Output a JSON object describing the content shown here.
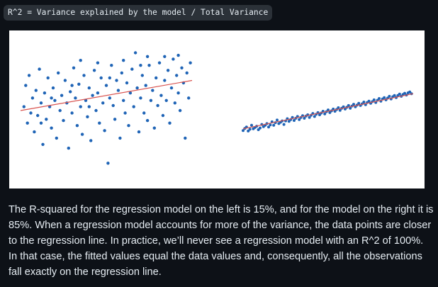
{
  "header": {
    "formula": "R^2 = Variance explained by the model / Total Variance"
  },
  "figure": {
    "point_color": "#1f64b6",
    "line_color": "#d9534f"
  },
  "chart_data": [
    {
      "type": "scatter",
      "title": "",
      "xlabel": "",
      "ylabel": "",
      "r_squared": 0.15,
      "grid": false,
      "legend": "none",
      "regression_line": {
        "x": [
          0,
          1
        ],
        "y": [
          0.52,
          0.76
        ]
      },
      "points": [
        {
          "x": 0.02,
          "y": 0.55
        },
        {
          "x": 0.03,
          "y": 0.72
        },
        {
          "x": 0.04,
          "y": 0.42
        },
        {
          "x": 0.05,
          "y": 0.8
        },
        {
          "x": 0.06,
          "y": 0.5
        },
        {
          "x": 0.07,
          "y": 0.62
        },
        {
          "x": 0.08,
          "y": 0.35
        },
        {
          "x": 0.09,
          "y": 0.68
        },
        {
          "x": 0.1,
          "y": 0.48
        },
        {
          "x": 0.11,
          "y": 0.85
        },
        {
          "x": 0.12,
          "y": 0.58
        },
        {
          "x": 0.13,
          "y": 0.25
        },
        {
          "x": 0.14,
          "y": 0.66
        },
        {
          "x": 0.15,
          "y": 0.45
        },
        {
          "x": 0.16,
          "y": 0.78
        },
        {
          "x": 0.17,
          "y": 0.55
        },
        {
          "x": 0.18,
          "y": 0.38
        },
        {
          "x": 0.19,
          "y": 0.7
        },
        {
          "x": 0.2,
          "y": 0.6
        },
        {
          "x": 0.21,
          "y": 0.3
        },
        {
          "x": 0.22,
          "y": 0.82
        },
        {
          "x": 0.23,
          "y": 0.52
        },
        {
          "x": 0.24,
          "y": 0.64
        },
        {
          "x": 0.25,
          "y": 0.44
        },
        {
          "x": 0.26,
          "y": 0.76
        },
        {
          "x": 0.27,
          "y": 0.58
        },
        {
          "x": 0.28,
          "y": 0.22
        },
        {
          "x": 0.29,
          "y": 0.67
        },
        {
          "x": 0.3,
          "y": 0.5
        },
        {
          "x": 0.31,
          "y": 0.86
        },
        {
          "x": 0.32,
          "y": 0.62
        },
        {
          "x": 0.33,
          "y": 0.4
        },
        {
          "x": 0.34,
          "y": 0.73
        },
        {
          "x": 0.35,
          "y": 0.55
        },
        {
          "x": 0.36,
          "y": 0.33
        },
        {
          "x": 0.37,
          "y": 0.8
        },
        {
          "x": 0.38,
          "y": 0.6
        },
        {
          "x": 0.39,
          "y": 0.47
        },
        {
          "x": 0.4,
          "y": 0.7
        },
        {
          "x": 0.41,
          "y": 0.28
        },
        {
          "x": 0.42,
          "y": 0.64
        },
        {
          "x": 0.43,
          "y": 0.84
        },
        {
          "x": 0.44,
          "y": 0.52
        },
        {
          "x": 0.45,
          "y": 0.66
        },
        {
          "x": 0.46,
          "y": 0.42
        },
        {
          "x": 0.47,
          "y": 0.78
        },
        {
          "x": 0.48,
          "y": 0.58
        },
        {
          "x": 0.49,
          "y": 0.36
        },
        {
          "x": 0.5,
          "y": 0.72
        },
        {
          "x": 0.51,
          "y": 0.1
        },
        {
          "x": 0.52,
          "y": 0.62
        },
        {
          "x": 0.53,
          "y": 0.88
        },
        {
          "x": 0.54,
          "y": 0.56
        },
        {
          "x": 0.55,
          "y": 0.45
        },
        {
          "x": 0.56,
          "y": 0.76
        },
        {
          "x": 0.57,
          "y": 0.68
        },
        {
          "x": 0.58,
          "y": 0.3
        },
        {
          "x": 0.59,
          "y": 0.82
        },
        {
          "x": 0.6,
          "y": 0.6
        },
        {
          "x": 0.61,
          "y": 0.5
        },
        {
          "x": 0.62,
          "y": 0.74
        },
        {
          "x": 0.63,
          "y": 0.4
        },
        {
          "x": 0.64,
          "y": 0.66
        },
        {
          "x": 0.65,
          "y": 0.85
        },
        {
          "x": 0.66,
          "y": 0.55
        },
        {
          "x": 0.67,
          "y": 0.98
        },
        {
          "x": 0.68,
          "y": 0.7
        },
        {
          "x": 0.69,
          "y": 0.35
        },
        {
          "x": 0.7,
          "y": 0.62
        },
        {
          "x": 0.71,
          "y": 0.8
        },
        {
          "x": 0.72,
          "y": 0.5
        },
        {
          "x": 0.73,
          "y": 0.72
        },
        {
          "x": 0.74,
          "y": 0.44
        },
        {
          "x": 0.75,
          "y": 0.88
        },
        {
          "x": 0.76,
          "y": 0.6
        },
        {
          "x": 0.77,
          "y": 0.68
        },
        {
          "x": 0.78,
          "y": 0.38
        },
        {
          "x": 0.79,
          "y": 0.78
        },
        {
          "x": 0.8,
          "y": 0.56
        },
        {
          "x": 0.81,
          "y": 0.9
        },
        {
          "x": 0.82,
          "y": 0.64
        },
        {
          "x": 0.83,
          "y": 0.48
        },
        {
          "x": 0.84,
          "y": 0.76
        },
        {
          "x": 0.85,
          "y": 0.6
        },
        {
          "x": 0.86,
          "y": 0.84
        },
        {
          "x": 0.87,
          "y": 0.42
        },
        {
          "x": 0.88,
          "y": 0.7
        },
        {
          "x": 0.89,
          "y": 0.93
        },
        {
          "x": 0.9,
          "y": 0.58
        },
        {
          "x": 0.91,
          "y": 0.8
        },
        {
          "x": 0.92,
          "y": 0.66
        },
        {
          "x": 0.93,
          "y": 0.52
        },
        {
          "x": 0.94,
          "y": 0.86
        },
        {
          "x": 0.95,
          "y": 0.74
        },
        {
          "x": 0.96,
          "y": 0.3
        },
        {
          "x": 0.97,
          "y": 0.82
        },
        {
          "x": 0.98,
          "y": 0.62
        },
        {
          "x": 0.99,
          "y": 0.9
        },
        {
          "x": 0.52,
          "y": 0.78
        },
        {
          "x": 0.6,
          "y": 0.92
        },
        {
          "x": 0.45,
          "y": 0.9
        },
        {
          "x": 0.3,
          "y": 0.72
        },
        {
          "x": 0.74,
          "y": 0.95
        },
        {
          "x": 0.18,
          "y": 0.62
        },
        {
          "x": 0.84,
          "y": 0.95
        },
        {
          "x": 0.35,
          "y": 0.92
        },
        {
          "x": 0.7,
          "y": 0.88
        },
        {
          "x": 0.12,
          "y": 0.42
        },
        {
          "x": 0.92,
          "y": 0.96
        },
        {
          "x": 0.4,
          "y": 0.55
        }
      ]
    },
    {
      "type": "scatter",
      "title": "",
      "xlabel": "",
      "ylabel": "",
      "r_squared": 0.85,
      "grid": false,
      "legend": "none",
      "regression_line": {
        "x": [
          0,
          1
        ],
        "y": [
          0.1,
          0.9
        ]
      },
      "points": [
        {
          "x": 0.0,
          "y": 0.06
        },
        {
          "x": 0.02,
          "y": 0.14
        },
        {
          "x": 0.03,
          "y": 0.05
        },
        {
          "x": 0.05,
          "y": 0.18
        },
        {
          "x": 0.06,
          "y": 0.1
        },
        {
          "x": 0.08,
          "y": 0.16
        },
        {
          "x": 0.09,
          "y": 0.08
        },
        {
          "x": 0.11,
          "y": 0.2
        },
        {
          "x": 0.12,
          "y": 0.15
        },
        {
          "x": 0.14,
          "y": 0.22
        },
        {
          "x": 0.15,
          "y": 0.14
        },
        {
          "x": 0.17,
          "y": 0.26
        },
        {
          "x": 0.18,
          "y": 0.18
        },
        {
          "x": 0.2,
          "y": 0.3
        },
        {
          "x": 0.21,
          "y": 0.22
        },
        {
          "x": 0.23,
          "y": 0.28
        },
        {
          "x": 0.24,
          "y": 0.2
        },
        {
          "x": 0.26,
          "y": 0.33
        },
        {
          "x": 0.27,
          "y": 0.27
        },
        {
          "x": 0.29,
          "y": 0.36
        },
        {
          "x": 0.3,
          "y": 0.29
        },
        {
          "x": 0.32,
          "y": 0.38
        },
        {
          "x": 0.33,
          "y": 0.31
        },
        {
          "x": 0.35,
          "y": 0.4
        },
        {
          "x": 0.36,
          "y": 0.34
        },
        {
          "x": 0.38,
          "y": 0.42
        },
        {
          "x": 0.39,
          "y": 0.36
        },
        {
          "x": 0.41,
          "y": 0.45
        },
        {
          "x": 0.42,
          "y": 0.38
        },
        {
          "x": 0.44,
          "y": 0.47
        },
        {
          "x": 0.45,
          "y": 0.42
        },
        {
          "x": 0.47,
          "y": 0.5
        },
        {
          "x": 0.48,
          "y": 0.44
        },
        {
          "x": 0.5,
          "y": 0.53
        },
        {
          "x": 0.51,
          "y": 0.47
        },
        {
          "x": 0.53,
          "y": 0.55
        },
        {
          "x": 0.54,
          "y": 0.5
        },
        {
          "x": 0.56,
          "y": 0.58
        },
        {
          "x": 0.57,
          "y": 0.52
        },
        {
          "x": 0.59,
          "y": 0.6
        },
        {
          "x": 0.6,
          "y": 0.55
        },
        {
          "x": 0.62,
          "y": 0.63
        },
        {
          "x": 0.63,
          "y": 0.57
        },
        {
          "x": 0.65,
          "y": 0.66
        },
        {
          "x": 0.66,
          "y": 0.6
        },
        {
          "x": 0.68,
          "y": 0.68
        },
        {
          "x": 0.69,
          "y": 0.63
        },
        {
          "x": 0.71,
          "y": 0.71
        },
        {
          "x": 0.72,
          "y": 0.65
        },
        {
          "x": 0.74,
          "y": 0.73
        },
        {
          "x": 0.75,
          "y": 0.68
        },
        {
          "x": 0.77,
          "y": 0.76
        },
        {
          "x": 0.78,
          "y": 0.7
        },
        {
          "x": 0.8,
          "y": 0.79
        },
        {
          "x": 0.81,
          "y": 0.73
        },
        {
          "x": 0.83,
          "y": 0.81
        },
        {
          "x": 0.84,
          "y": 0.76
        },
        {
          "x": 0.86,
          "y": 0.84
        },
        {
          "x": 0.87,
          "y": 0.78
        },
        {
          "x": 0.89,
          "y": 0.86
        },
        {
          "x": 0.9,
          "y": 0.81
        },
        {
          "x": 0.92,
          "y": 0.89
        },
        {
          "x": 0.93,
          "y": 0.84
        },
        {
          "x": 0.95,
          "y": 0.91
        },
        {
          "x": 0.96,
          "y": 0.87
        },
        {
          "x": 0.98,
          "y": 0.94
        },
        {
          "x": 0.99,
          "y": 0.9
        },
        {
          "x": 0.01,
          "y": 0.11
        },
        {
          "x": 0.04,
          "y": 0.09
        },
        {
          "x": 0.07,
          "y": 0.13
        },
        {
          "x": 0.1,
          "y": 0.12
        },
        {
          "x": 0.13,
          "y": 0.18
        },
        {
          "x": 0.16,
          "y": 0.19
        },
        {
          "x": 0.19,
          "y": 0.24
        },
        {
          "x": 0.22,
          "y": 0.25
        },
        {
          "x": 0.25,
          "y": 0.28
        },
        {
          "x": 0.28,
          "y": 0.31
        },
        {
          "x": 0.31,
          "y": 0.34
        },
        {
          "x": 0.34,
          "y": 0.36
        },
        {
          "x": 0.37,
          "y": 0.39
        },
        {
          "x": 0.4,
          "y": 0.41
        },
        {
          "x": 0.43,
          "y": 0.43
        },
        {
          "x": 0.46,
          "y": 0.46
        },
        {
          "x": 0.49,
          "y": 0.49
        },
        {
          "x": 0.52,
          "y": 0.51
        },
        {
          "x": 0.55,
          "y": 0.54
        },
        {
          "x": 0.58,
          "y": 0.57
        },
        {
          "x": 0.61,
          "y": 0.59
        },
        {
          "x": 0.64,
          "y": 0.62
        },
        {
          "x": 0.67,
          "y": 0.64
        },
        {
          "x": 0.7,
          "y": 0.67
        },
        {
          "x": 0.73,
          "y": 0.7
        },
        {
          "x": 0.76,
          "y": 0.72
        },
        {
          "x": 0.79,
          "y": 0.75
        },
        {
          "x": 0.82,
          "y": 0.78
        },
        {
          "x": 0.85,
          "y": 0.8
        },
        {
          "x": 0.88,
          "y": 0.83
        },
        {
          "x": 0.91,
          "y": 0.86
        },
        {
          "x": 0.94,
          "y": 0.88
        },
        {
          "x": 0.97,
          "y": 0.92
        }
      ]
    }
  ],
  "body": {
    "paragraph": "The R-squared for the regression model on the left is 15%, and for the model on the right it is 85%. When a regression model accounts for more of the variance, the data points are closer to the regression line. In practice, we’ll never see a regression model with an R^2 of 100%. In that case, the fitted values equal the data values and, consequently, all the observations fall exactly on the regression line."
  }
}
